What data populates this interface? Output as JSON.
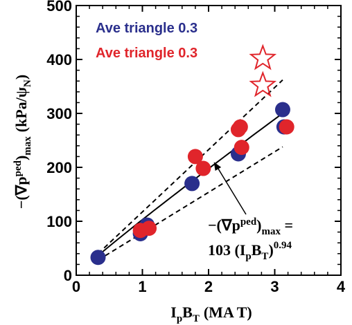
{
  "chart_data": {
    "type": "scatter",
    "xlabel_main": "I",
    "xlabel_sub1": "p",
    "xlabel_mid": "B",
    "xlabel_sub2": "T",
    "xlabel_units": "(MA T)",
    "ylabel_prefix": "−(∇p",
    "ylabel_sup": "ped",
    "ylabel_close": ")",
    "ylabel_sub": "max",
    "ylabel_units_open": "(kPa/ψ",
    "ylabel_units_sub": "N",
    "ylabel_units_close": ")",
    "xlim": [
      0,
      4
    ],
    "ylim": [
      0,
      500
    ],
    "xticks": [
      "0",
      "1",
      "2",
      "3",
      "4"
    ],
    "yticks": [
      "0",
      "100",
      "200",
      "300",
      "400",
      "500"
    ],
    "legend": [
      {
        "label": "Ave triangle 0.3",
        "color": "#2a2f8c"
      },
      {
        "label": "Ave triangle 0.3",
        "color": "#e0252b"
      }
    ],
    "series": [
      {
        "color": "#2a2f8c",
        "x": [
          0.33,
          0.97,
          1.07,
          1.75,
          2.45,
          3.12,
          3.14
        ],
        "y": [
          33,
          77,
          93,
          170,
          225,
          307,
          275
        ]
      },
      {
        "color": "#e0252b",
        "x": [
          0.97,
          1.1,
          1.8,
          1.92,
          2.45,
          2.48,
          2.5,
          3.18
        ],
        "y": [
          83,
          87,
          220,
          198,
          270,
          275,
          237,
          275
        ]
      }
    ],
    "stars": {
      "color": "#e0252b",
      "x": [
        2.82,
        2.82
      ],
      "y": [
        402,
        352
      ]
    },
    "fit": {
      "coef": 103,
      "exp": 0.94,
      "x_range": [
        0.33,
        3.15
      ]
    },
    "dashed_bounds": [
      {
        "x": [
          0.33,
          3.12
        ],
        "y": [
          40,
          362
        ]
      },
      {
        "x": [
          0.33,
          3.12
        ],
        "y": [
          28,
          238
        ]
      }
    ],
    "annotation": {
      "line1_prefix": "−(∇p",
      "line1_sup": "ped",
      "line1_close": ")",
      "line1_sub": "max",
      "line1_eq": " =",
      "line2_prefix": "103 (I",
      "line2_sub1": "p",
      "line2_mid": "B",
      "line2_sub2": "T",
      "line2_close": ")",
      "line2_sup": "0.94",
      "arrow_to": [
        2.08,
        210
      ]
    }
  }
}
